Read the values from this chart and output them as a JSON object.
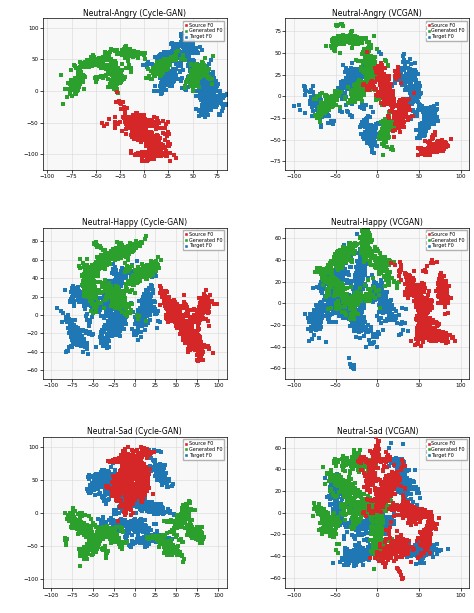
{
  "subplots": [
    {
      "title": "Neutral-Angry (Cycle-GAN)",
      "xlim": [
        -105,
        85
      ],
      "ylim": [
        -125,
        115
      ],
      "xticks": [
        -100,
        -75,
        -50,
        -25,
        0,
        25,
        50,
        75
      ],
      "yticks": [
        -100,
        -50,
        0,
        50,
        100
      ]
    },
    {
      "title": "Neutral-Angry (VCGAN)",
      "xlim": [
        -110,
        110
      ],
      "ylim": [
        -85,
        90
      ],
      "xticks": [
        -100,
        -50,
        0,
        50,
        100
      ],
      "yticks": [
        -75,
        -50,
        -25,
        0,
        25,
        50,
        75
      ]
    },
    {
      "title": "Neutral-Happy (Cycle-GAN)",
      "xlim": [
        -110,
        110
      ],
      "ylim": [
        -70,
        95
      ],
      "xticks": [
        -100,
        -75,
        -50,
        -25,
        0,
        25,
        50,
        75,
        100
      ],
      "yticks": [
        -60,
        -40,
        -20,
        0,
        20,
        40,
        60,
        80
      ]
    },
    {
      "title": "Neutral-Happy (VCGAN)",
      "xlim": [
        -110,
        110
      ],
      "ylim": [
        -70,
        70
      ],
      "xticks": [
        -100,
        -50,
        0,
        50,
        100
      ],
      "yticks": [
        -60,
        -40,
        -20,
        0,
        20,
        40,
        60
      ]
    },
    {
      "title": "Neutral-Sad (Cycle-GAN)",
      "xlim": [
        -110,
        110
      ],
      "ylim": [
        -115,
        115
      ],
      "xticks": [
        -100,
        -75,
        -50,
        -25,
        0,
        25,
        50,
        75,
        100
      ],
      "yticks": [
        -100,
        -50,
        0,
        50,
        100
      ]
    },
    {
      "title": "Neutral-Sad (VCGAN)",
      "xlim": [
        -110,
        110
      ],
      "ylim": [
        -70,
        70
      ],
      "xticks": [
        -100,
        -50,
        0,
        50,
        100
      ],
      "yticks": [
        -60,
        -40,
        -20,
        0,
        20,
        40,
        60
      ]
    }
  ],
  "colors": {
    "source": "#d62728",
    "generated": "#2ca02c",
    "target": "#1f77b4"
  },
  "legend_labels": [
    "Source F0",
    "Generated F0",
    "Target F0"
  ],
  "marker_size": 6,
  "seed": 42,
  "bg_color": "#f8f8f8",
  "grid_color": "#d0d0d0"
}
